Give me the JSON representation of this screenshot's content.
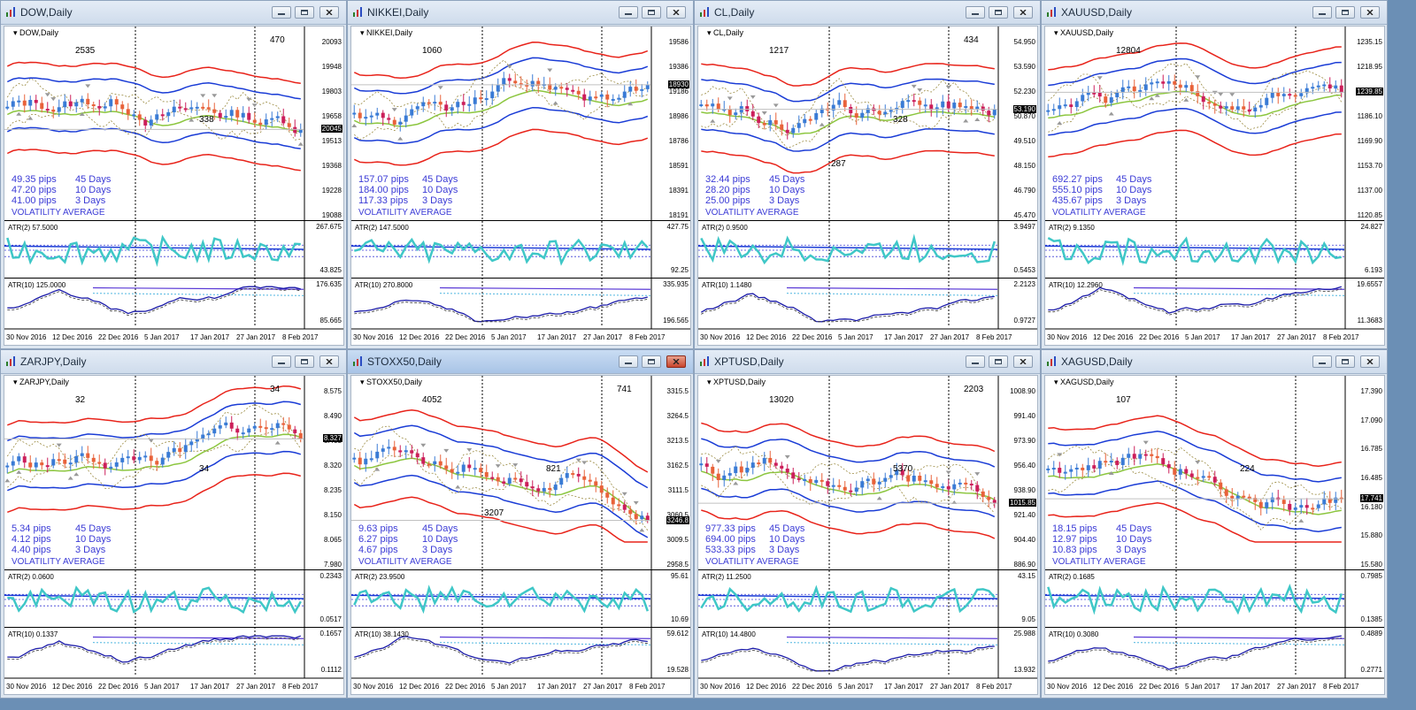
{
  "windows": [
    {
      "title": "DOW,Daily",
      "symbol": "DOW,Daily",
      "active": false,
      "vol": [
        [
          "49.35 pips",
          "45 Days"
        ],
        [
          "47.20 pips",
          "10 Days"
        ],
        [
          "41.00 pips",
          "3 Days"
        ]
      ],
      "price_ticks": [
        "20093",
        "19948",
        "19803",
        "19658",
        "19513",
        "19368",
        "19228",
        "19088"
      ],
      "current_price": "20045",
      "annos": [
        "2535",
        "338",
        "470"
      ],
      "atr2_label": "ATR(2) 57.5000",
      "atr2_ticks": [
        "267.675",
        "43.825"
      ],
      "atr10_label": "ATR(10) 125.0000",
      "atr10_ticks": [
        "176.635",
        "85.665"
      ]
    },
    {
      "title": "NIKKEI,Daily",
      "symbol": "NIKKEI,Daily",
      "active": false,
      "vol": [
        [
          "157.07 pips",
          "45 Days"
        ],
        [
          "184.00 pips",
          "10 Days"
        ],
        [
          "117.33 pips",
          "3 Days"
        ]
      ],
      "price_ticks": [
        "19586",
        "19386",
        "19186",
        "18986",
        "18786",
        "18591",
        "18391",
        "18191"
      ],
      "current_price": "18930",
      "annos": [
        "1060"
      ],
      "atr2_label": "ATR(2) 147.5000",
      "atr2_ticks": [
        "427.75",
        "92.25"
      ],
      "atr10_label": "ATR(10) 270.8000",
      "atr10_ticks": [
        "335.935",
        "196.565"
      ]
    },
    {
      "title": "CL,Daily",
      "symbol": "CL,Daily",
      "active": false,
      "vol": [
        [
          "32.44 pips",
          "45 Days"
        ],
        [
          "28.20 pips",
          "10 Days"
        ],
        [
          "25.00 pips",
          "3 Days"
        ]
      ],
      "price_ticks": [
        "54.950",
        "53.590",
        "52.230",
        "50.870",
        "49.510",
        "48.150",
        "46.790",
        "45.470"
      ],
      "current_price": "53.190",
      "annos": [
        "1217",
        "328",
        "434",
        "287"
      ],
      "atr2_label": "ATR(2) 0.9500",
      "atr2_ticks": [
        "3.9497",
        "0.5453"
      ],
      "atr10_label": "ATR(10) 1.1480",
      "atr10_ticks": [
        "2.2123",
        "0.9727"
      ]
    },
    {
      "title": "XAUUSD,Daily",
      "symbol": "XAUUSD,Daily",
      "active": false,
      "vol": [
        [
          "692.27 pips",
          "45 Days"
        ],
        [
          "555.10 pips",
          "10 Days"
        ],
        [
          "435.67 pips",
          "3 Days"
        ]
      ],
      "price_ticks": [
        "1235.15",
        "1218.95",
        "1202.30",
        "1186.10",
        "1169.90",
        "1153.70",
        "1137.00",
        "1120.85"
      ],
      "current_price": "1239.85",
      "annos": [
        "12804"
      ],
      "atr2_label": "ATR(2) 9.1350",
      "atr2_ticks": [
        "24.827",
        "6.193"
      ],
      "atr10_label": "ATR(10) 12.2960",
      "atr10_ticks": [
        "19.6557",
        "11.3683"
      ]
    },
    {
      "title": "ZARJPY,Daily",
      "symbol": "ZARJPY,Daily",
      "active": false,
      "vol": [
        [
          "5.34 pips",
          "45 Days"
        ],
        [
          "4.12 pips",
          "10 Days"
        ],
        [
          "4.40 pips",
          "3 Days"
        ]
      ],
      "price_ticks": [
        "8.575",
        "8.490",
        "8.405",
        "8.320",
        "8.235",
        "8.150",
        "8.065",
        "7.980"
      ],
      "current_price": "8.327",
      "annos": [
        "32",
        "34",
        "34"
      ],
      "atr2_label": "ATR(2) 0.0600",
      "atr2_ticks": [
        "0.2343",
        "0.0517"
      ],
      "atr10_label": "ATR(10) 0.1337",
      "atr10_ticks": [
        "0.1657",
        "0.1112"
      ]
    },
    {
      "title": "STOXX50,Daily",
      "symbol": "STOXX50,Daily",
      "active": true,
      "vol": [
        [
          "9.63 pips",
          "45 Days"
        ],
        [
          "6.27 pips",
          "10 Days"
        ],
        [
          "4.67 pips",
          "3 Days"
        ]
      ],
      "price_ticks": [
        "3315.5",
        "3264.5",
        "3213.5",
        "3162.5",
        "3111.5",
        "3060.5",
        "3009.5",
        "2958.5"
      ],
      "current_price": "3246.8",
      "annos": [
        "4052",
        "821",
        "741",
        "3207"
      ],
      "atr2_label": "ATR(2) 23.9500",
      "atr2_ticks": [
        "95.61",
        "10.69"
      ],
      "atr10_label": "ATR(10) 38.1430",
      "atr10_ticks": [
        "59.612",
        "19.528"
      ]
    },
    {
      "title": "XPTUSD,Daily",
      "symbol": "XPTUSD,Daily",
      "active": false,
      "vol": [
        [
          "977.33 pips",
          "45 Days"
        ],
        [
          "694.00 pips",
          "10 Days"
        ],
        [
          "533.33 pips",
          "3 Days"
        ]
      ],
      "price_ticks": [
        "1008.90",
        "991.40",
        "973.90",
        "956.40",
        "938.90",
        "921.40",
        "904.40",
        "886.90"
      ],
      "current_price": "1015.85",
      "annos": [
        "13020",
        "5370",
        "2203"
      ],
      "atr2_label": "ATR(2) 11.2500",
      "atr2_ticks": [
        "43.15",
        "9.05"
      ],
      "atr10_label": "ATR(10) 14.4800",
      "atr10_ticks": [
        "25.988",
        "13.932"
      ]
    },
    {
      "title": "XAGUSD,Daily",
      "symbol": "XAGUSD,Daily",
      "active": false,
      "vol": [
        [
          "18.15 pips",
          "45 Days"
        ],
        [
          "12.97 pips",
          "10 Days"
        ],
        [
          "10.83 pips",
          "3 Days"
        ]
      ],
      "price_ticks": [
        "17.390",
        "17.090",
        "16.785",
        "16.485",
        "16.180",
        "15.880",
        "15.580"
      ],
      "current_price": "17.741",
      "annos": [
        "107",
        "224"
      ],
      "atr2_label": "ATR(2) 0.1685",
      "atr2_ticks": [
        "0.7985",
        "0.1385"
      ],
      "atr10_label": "ATR(10) 0.3080",
      "atr10_ticks": [
        "0.4889",
        "0.2771"
      ]
    }
  ],
  "volatility_average_label": "VOLATILITY AVERAGE",
  "dates": [
    "30 Nov 2016",
    "12 Dec 2016",
    "22 Dec 2016",
    "5 Jan 2017",
    "17 Jan 2017",
    "27 Jan 2017",
    "8 Feb 2017"
  ],
  "colors": {
    "bull": "#3a7bd5",
    "bear": "#e8623a",
    "bear2": "#cc1f5a",
    "band_blue": "#1a3cd6",
    "band_red": "#e8231a",
    "green": "#8cc63f",
    "atr_fast": "#3fc7c7",
    "atr_slow": "#1a1aa8"
  }
}
